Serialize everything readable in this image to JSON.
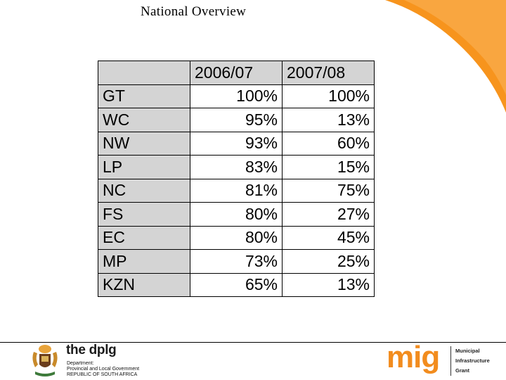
{
  "slide": {
    "title": "National Overview"
  },
  "table": {
    "columns": [
      "",
      "2006/07",
      "2007/08"
    ],
    "rows": [
      {
        "label": "GT",
        "y2006_07": "100%",
        "y2007_08": "100%"
      },
      {
        "label": "WC",
        "y2006_07": "95%",
        "y2007_08": "13%"
      },
      {
        "label": "NW",
        "y2006_07": "93%",
        "y2007_08": "60%"
      },
      {
        "label": "LP",
        "y2006_07": "83%",
        "y2007_08": "15%"
      },
      {
        "label": "NC",
        "y2006_07": "81%",
        "y2007_08": "75%"
      },
      {
        "label": "FS",
        "y2006_07": "80%",
        "y2007_08": "27%"
      },
      {
        "label": "EC",
        "y2006_07": "80%",
        "y2007_08": "45%"
      },
      {
        "label": "MP",
        "y2006_07": "73%",
        "y2007_08": "25%"
      },
      {
        "label": "KZN",
        "y2006_07": "65%",
        "y2007_08": "13%"
      }
    ]
  },
  "footer": {
    "dplg": {
      "prefix": "the ",
      "name": "dplg",
      "lines": [
        "Department:",
        "Provincial and Local Government",
        "REPUBLIC OF SOUTH AFRICA"
      ]
    },
    "mig": {
      "word": "mig",
      "lines": [
        "Municipal",
        "Infrastructure",
        "Grant"
      ]
    }
  },
  "colors": {
    "accent_orange": "#f7941d",
    "header_gray": "#d4d4d4",
    "mig_orange": "#f28c1e"
  },
  "icons": {
    "corner": "orange-swoosh-decoration",
    "emblem": "coat-of-arms-icon"
  }
}
